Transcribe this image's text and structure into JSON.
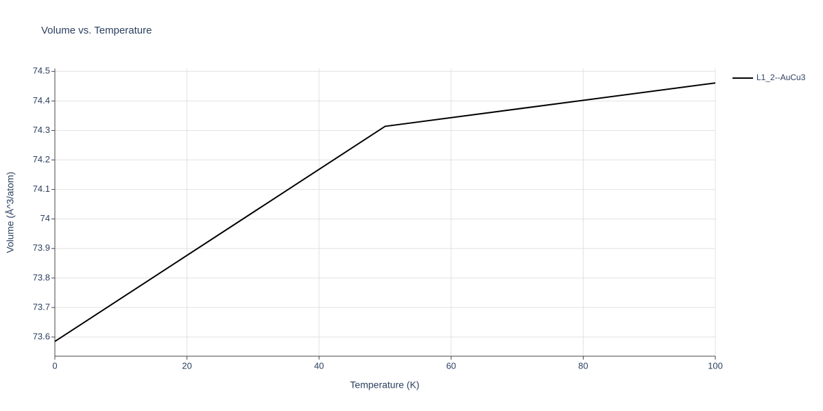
{
  "chart_data": {
    "type": "line",
    "title": "Volume vs. Temperature",
    "x_label": "Temperature (K)",
    "y_label": "Volume (Å^3/atom)",
    "x": [
      0,
      50,
      100
    ],
    "series": [
      {
        "name": "L1_2--AuCu3",
        "color": "#000000",
        "values": [
          73.585,
          74.314,
          74.461
        ]
      }
    ],
    "xlim": [
      0,
      100
    ],
    "xticks": [
      0,
      20,
      40,
      60,
      80,
      100
    ],
    "ylim": [
      73.535,
      74.51
    ],
    "yticks": [
      73.6,
      73.7,
      73.8,
      73.9,
      74,
      74.1,
      74.2,
      74.3,
      74.4,
      74.5
    ],
    "grid": true,
    "legend": "right"
  }
}
